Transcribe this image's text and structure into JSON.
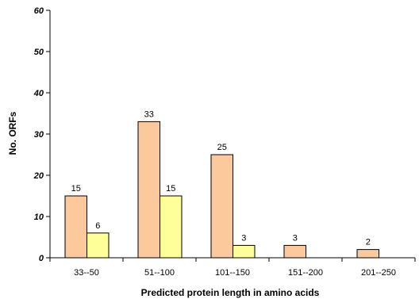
{
  "chart_data": {
    "type": "bar",
    "categories": [
      "33--50",
      "51--100",
      "101--150",
      "151--200",
      "201--250"
    ],
    "series": [
      {
        "values": [
          15,
          33,
          25,
          3,
          2
        ],
        "color": "#fcc99d"
      },
      {
        "values": [
          6,
          15,
          3,
          null,
          null
        ],
        "color": "#ffff99"
      }
    ],
    "data_labels": [
      [
        "15",
        "33",
        "25",
        "3",
        "2"
      ],
      [
        "6",
        "15",
        "3",
        "",
        ""
      ]
    ],
    "xlabel": "Predicted protein length in amino acids",
    "ylabel": "No. ORFs",
    "ylim": [
      0,
      60
    ],
    "yticks": [
      0,
      10,
      20,
      30,
      40,
      50,
      60
    ],
    "grid": false,
    "legend": "none"
  }
}
